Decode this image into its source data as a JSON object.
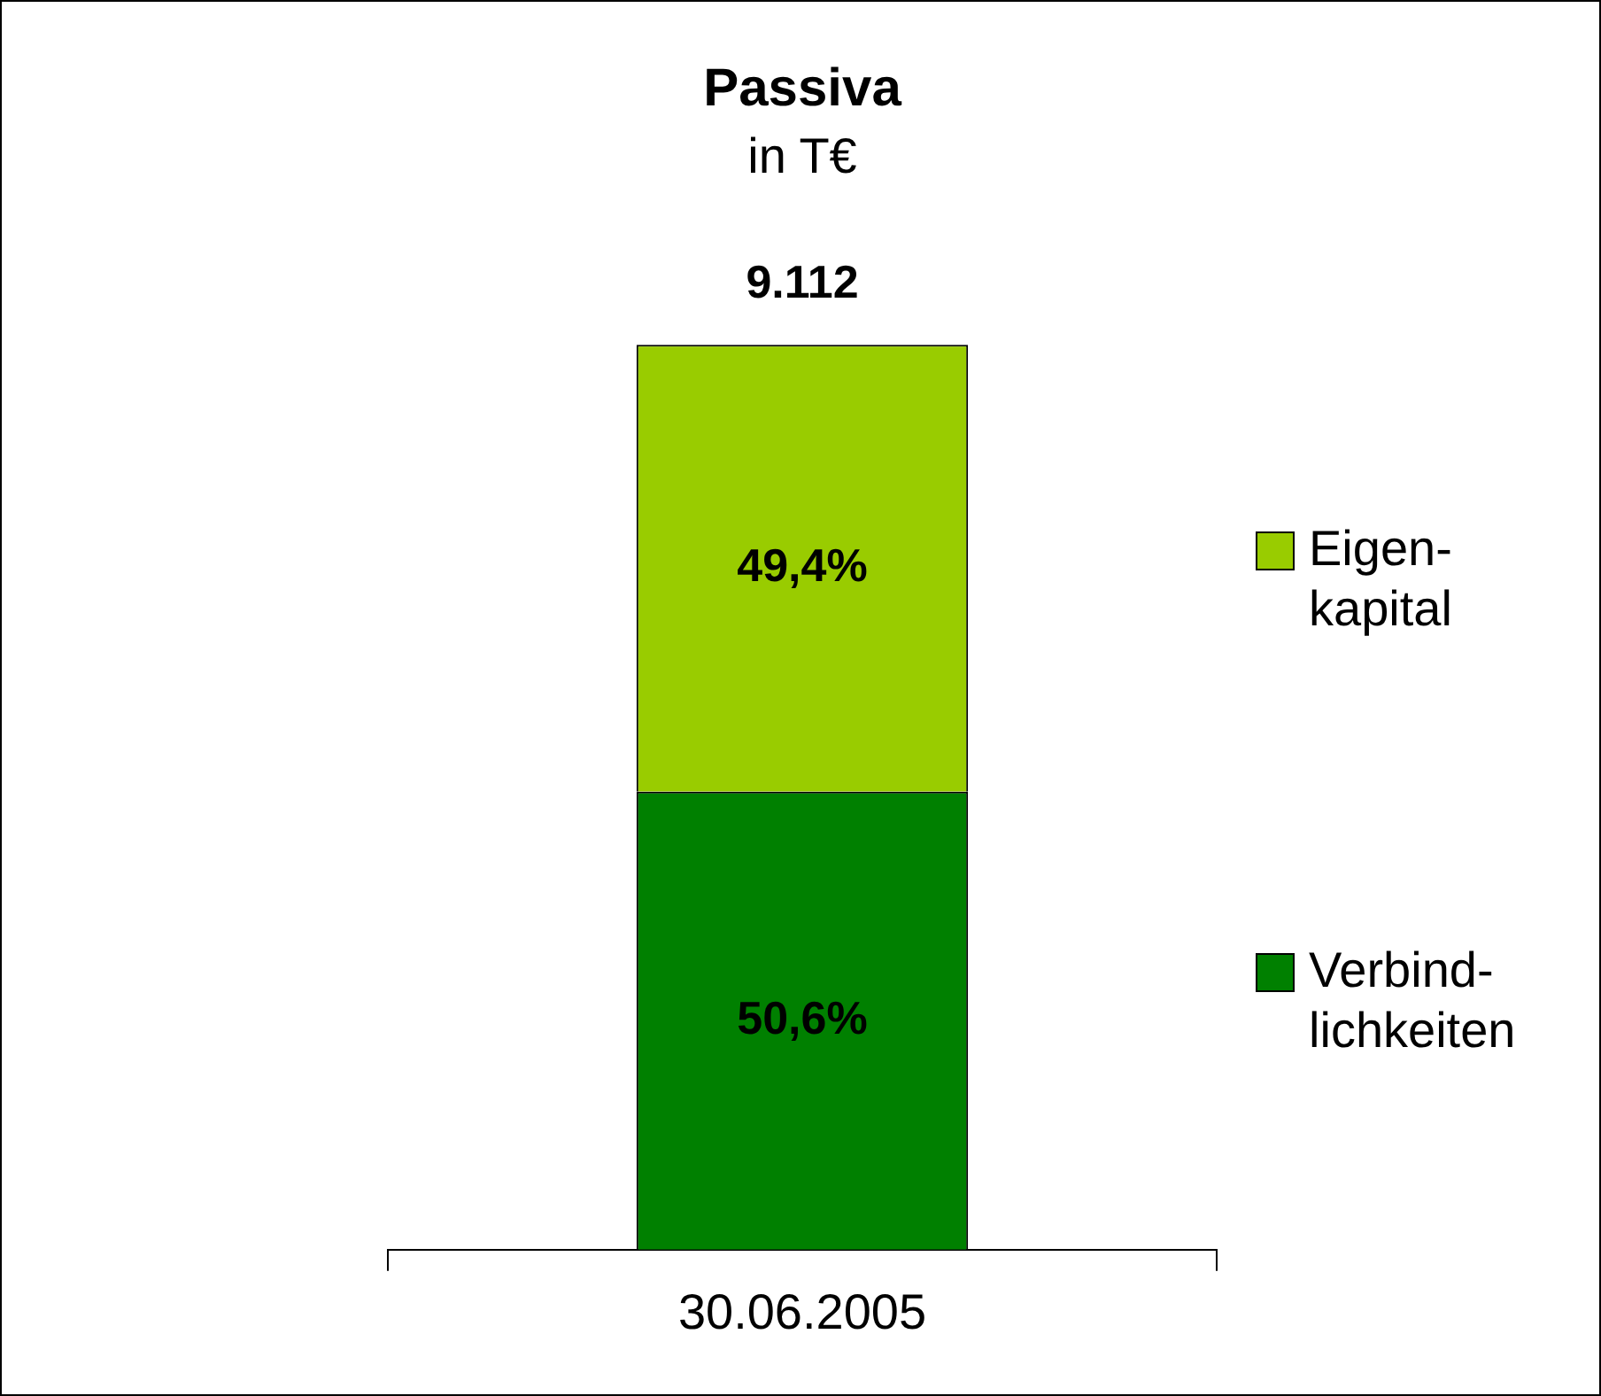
{
  "chart_data": {
    "type": "bar",
    "title": "Passiva",
    "subtitle": "in T€",
    "categories": [
      "30.06.2005"
    ],
    "stacked": true,
    "legend": "right",
    "series": [
      {
        "name": "Verbind-\nlichkeiten",
        "color": "#008000",
        "values": [
          50.6
        ],
        "value_labels": [
          "50,6%"
        ]
      },
      {
        "name": "Eigen-\nkapital",
        "color": "#99cc00",
        "values": [
          49.4
        ],
        "value_labels": [
          "49,4%"
        ]
      }
    ],
    "annotations": [
      {
        "text": "9.112",
        "x": "30.06.2005",
        "y": 100
      }
    ]
  }
}
